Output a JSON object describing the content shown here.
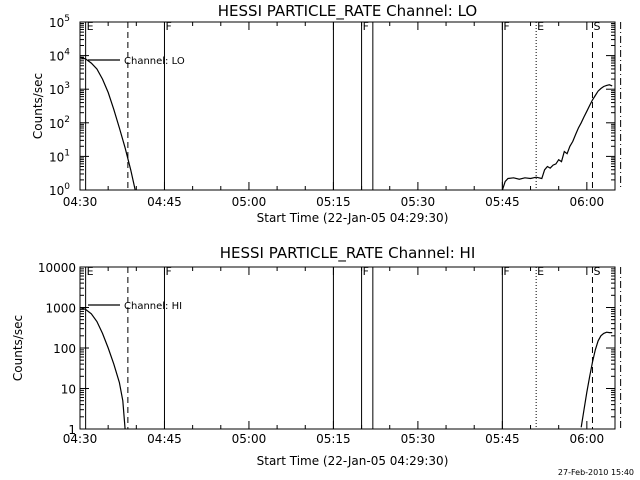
{
  "timestamp": "27-Feb-2010 15:40",
  "chart_data": [
    {
      "type": "line",
      "title": "HESSI PARTICLE_RATE Channel: LO",
      "ylabel": "Counts/sec",
      "xlabel": "Start Time (22-Jan-05 04:29:30)",
      "yscale": "log",
      "ylim": [
        1,
        100000
      ],
      "xlim_minutes": [
        0,
        95
      ],
      "x_ticks": [
        {
          "t": 0,
          "label": "04:30"
        },
        {
          "t": 15,
          "label": "04:45"
        },
        {
          "t": 30,
          "label": "05:00"
        },
        {
          "t": 45,
          "label": "05:15"
        },
        {
          "t": 60,
          "label": "05:30"
        },
        {
          "t": 75,
          "label": "05:45"
        },
        {
          "t": 90,
          "label": "06:00"
        }
      ],
      "y_ticks": [
        {
          "v": 1,
          "base": "10",
          "exp": "0"
        },
        {
          "v": 10,
          "base": "10",
          "exp": "1"
        },
        {
          "v": 100,
          "base": "10",
          "exp": "2"
        },
        {
          "v": 1000,
          "base": "10",
          "exp": "3"
        },
        {
          "v": 10000,
          "base": "10",
          "exp": "4"
        },
        {
          "v": 100000,
          "base": "10",
          "exp": "5"
        }
      ],
      "legend": {
        "label": "Channel: LO",
        "placement": "top-left"
      },
      "series": [
        {
          "name": "Channel: LO",
          "points": [
            [
              0,
              9000
            ],
            [
              1,
              8000
            ],
            [
              2,
              6000
            ],
            [
              3,
              4000
            ],
            [
              4,
              2000
            ],
            [
              5,
              800
            ],
            [
              6,
              250
            ],
            [
              7,
              70
            ],
            [
              8,
              18
            ],
            [
              9,
              4
            ],
            [
              9.8,
              1
            ]
          ]
        },
        {
          "name": "Channel: LO",
          "points": [
            [
              75,
              1
            ],
            [
              75.5,
              1.8
            ],
            [
              76,
              2.2
            ],
            [
              77,
              2.3
            ],
            [
              78,
              2.1
            ],
            [
              79,
              2.3
            ],
            [
              80,
              2.2
            ],
            [
              81,
              2.4
            ],
            [
              82,
              2.2
            ],
            [
              82.5,
              4
            ],
            [
              83,
              5
            ],
            [
              83.5,
              4.5
            ],
            [
              84,
              5.5
            ],
            [
              84.5,
              6
            ],
            [
              85,
              8
            ],
            [
              85.5,
              7
            ],
            [
              86,
              14
            ],
            [
              86.5,
              12
            ],
            [
              87,
              20
            ],
            [
              87.5,
              28
            ],
            [
              88,
              45
            ],
            [
              88.5,
              70
            ],
            [
              89,
              100
            ],
            [
              89.5,
              150
            ],
            [
              90,
              220
            ],
            [
              90.5,
              330
            ],
            [
              91,
              480
            ],
            [
              91.5,
              650
            ],
            [
              92,
              880
            ],
            [
              92.5,
              1050
            ],
            [
              93,
              1200
            ],
            [
              93.5,
              1300
            ],
            [
              94,
              1350
            ],
            [
              94.5,
              1250
            ]
          ]
        }
      ],
      "markers": [
        {
          "t": 1,
          "label": "E",
          "style": "solid"
        },
        {
          "t": 8.5,
          "label": "",
          "style": "dashed"
        },
        {
          "t": 15,
          "label": "F",
          "style": "solid"
        },
        {
          "t": 45,
          "label": "",
          "style": "solid"
        },
        {
          "t": 50,
          "label": "F",
          "style": "solid"
        },
        {
          "t": 52,
          "label": "",
          "style": "solid"
        },
        {
          "t": 75,
          "label": "F",
          "style": "solid"
        },
        {
          "t": 81,
          "label": "E",
          "style": "dotted"
        },
        {
          "t": 91,
          "label": "S",
          "style": "dashed"
        },
        {
          "t": 96,
          "label": "",
          "style": "dashdot"
        }
      ]
    },
    {
      "type": "line",
      "title": "HESSI PARTICLE_RATE Channel: HI",
      "ylabel": "Counts/sec",
      "xlabel": "Start Time (22-Jan-05 04:29:30)",
      "yscale": "log",
      "ylim": [
        1,
        10000
      ],
      "xlim_minutes": [
        0,
        95
      ],
      "x_ticks": [
        {
          "t": 0,
          "label": "04:30"
        },
        {
          "t": 15,
          "label": "04:45"
        },
        {
          "t": 30,
          "label": "05:00"
        },
        {
          "t": 45,
          "label": "05:15"
        },
        {
          "t": 60,
          "label": "05:30"
        },
        {
          "t": 75,
          "label": "05:45"
        },
        {
          "t": 90,
          "label": "06:00"
        }
      ],
      "y_ticks": [
        {
          "v": 1,
          "label": "1"
        },
        {
          "v": 10,
          "label": "10"
        },
        {
          "v": 100,
          "label": "100"
        },
        {
          "v": 1000,
          "label": "1000"
        },
        {
          "v": 10000,
          "label": "10000"
        }
      ],
      "legend": {
        "label": "Channel: HI",
        "placement": "top-left"
      },
      "series": [
        {
          "name": "Channel: HI",
          "points": [
            [
              0,
              1000
            ],
            [
              1,
              900
            ],
            [
              2,
              700
            ],
            [
              3,
              450
            ],
            [
              4,
              230
            ],
            [
              5,
              100
            ],
            [
              6,
              40
            ],
            [
              7,
              14
            ],
            [
              7.6,
              5
            ],
            [
              8,
              1
            ]
          ]
        },
        {
          "name": "Channel: HI",
          "points": [
            [
              89,
              1.1
            ],
            [
              89.5,
              3
            ],
            [
              90,
              8
            ],
            [
              90.5,
              20
            ],
            [
              91,
              45
            ],
            [
              91.5,
              90
            ],
            [
              92,
              150
            ],
            [
              92.5,
              200
            ],
            [
              93,
              230
            ],
            [
              93.5,
              245
            ],
            [
              94,
              240
            ],
            [
              94.5,
              240
            ]
          ]
        }
      ],
      "markers": [
        {
          "t": 1,
          "label": "E",
          "style": "solid"
        },
        {
          "t": 8.5,
          "label": "",
          "style": "dashed"
        },
        {
          "t": 15,
          "label": "F",
          "style": "solid"
        },
        {
          "t": 45,
          "label": "",
          "style": "solid"
        },
        {
          "t": 50,
          "label": "F",
          "style": "solid"
        },
        {
          "t": 52,
          "label": "",
          "style": "solid"
        },
        {
          "t": 75,
          "label": "F",
          "style": "solid"
        },
        {
          "t": 81,
          "label": "E",
          "style": "dotted"
        },
        {
          "t": 91,
          "label": "S",
          "style": "dashed"
        },
        {
          "t": 96,
          "label": "",
          "style": "dashdot"
        }
      ]
    }
  ]
}
